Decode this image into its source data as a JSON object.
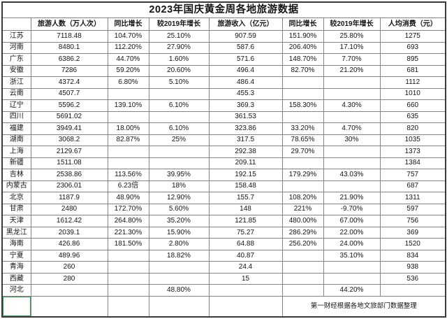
{
  "title": "2023年国庆黄金周各地旅游数据",
  "source_note": "第一财经根据各地文旅部门数据整理",
  "columns": [
    "",
    "旅游人数（万人次）",
    "同比增长",
    "较2019年增长",
    "旅游收入（亿元）",
    "同比增长",
    "较2019年增长",
    "人均消费（元）"
  ],
  "rows": [
    [
      "江苏",
      "7118.48",
      "104.70%",
      "25.10%",
      "907.59",
      "151.90%",
      "25.80%",
      "1275"
    ],
    [
      "河南",
      "8480.1",
      "112.20%",
      "27.90%",
      "587.6",
      "206.40%",
      "17.10%",
      "693"
    ],
    [
      "广东",
      "6386.2",
      "44.70%",
      "1.60%",
      "571.6",
      "148.70%",
      "7.70%",
      "895"
    ],
    [
      "安徽",
      "7286",
      "59.20%",
      "20.60%",
      "496.4",
      "82.70%",
      "21.20%",
      "681"
    ],
    [
      "浙江",
      "4372.4",
      "6.80%",
      "5.10%",
      "486.4",
      "",
      "",
      "1112"
    ],
    [
      "云南",
      "4507.7",
      "",
      "",
      "455.3",
      "",
      "",
      "1010"
    ],
    [
      "辽宁",
      "5596.2",
      "139.10%",
      "6.10%",
      "369.3",
      "158.30%",
      "4.30%",
      "660"
    ],
    [
      "四川",
      "5691.02",
      "",
      "",
      "361.53",
      "",
      "",
      "635"
    ],
    [
      "福建",
      "3949.41",
      "18.00%",
      "6.10%",
      "323.86",
      "33.20%",
      "4.70%",
      "820"
    ],
    [
      "湖南",
      "3068.2",
      "82.87%",
      "25%",
      "317.5",
      "78.65%",
      "30%",
      "1035"
    ],
    [
      "上海",
      "2129.67",
      "",
      "",
      "292.38",
      "29.70%",
      "",
      "1373"
    ],
    [
      "新疆",
      "1511.08",
      "",
      "",
      "209.11",
      "",
      "",
      "1384"
    ],
    [
      "吉林",
      "2538.86",
      "113.56%",
      "39.95%",
      "192.15",
      "179.29%",
      "43.03%",
      "757"
    ],
    [
      "内蒙古",
      "2306.01",
      "6.23倍",
      "18%",
      "158.48",
      "",
      "",
      "687"
    ],
    [
      "北京",
      "1187.9",
      "48.90%",
      "12.90%",
      "155.7",
      "108.20%",
      "21.90%",
      "1311"
    ],
    [
      "甘肃",
      "2480",
      "172.70%",
      "5.60%",
      "148",
      "221%",
      "-9.70%",
      "597"
    ],
    [
      "天津",
      "1612.42",
      "264.80%",
      "35.20%",
      "121.85",
      "480.00%",
      "67.00%",
      "756"
    ],
    [
      "黑龙江",
      "2039.1",
      "221.30%",
      "15.90%",
      "75.27",
      "286.29%",
      "22.00%",
      "369"
    ],
    [
      "海南",
      "426.86",
      "181.50%",
      "2.80%",
      "64.88",
      "256.20%",
      "24.00%",
      "1520"
    ],
    [
      "宁夏",
      "489.96",
      "",
      "18.82%",
      "40.87",
      "",
      "35.10%",
      "834"
    ],
    [
      "青海",
      "260",
      "",
      "",
      "24.4",
      "",
      "",
      "938"
    ],
    [
      "西藏",
      "280",
      "",
      "",
      "15",
      "",
      "",
      "536"
    ],
    [
      "河北",
      "",
      "",
      "48.80%",
      "",
      "",
      "44.20%",
      ""
    ]
  ],
  "colors": {
    "selection_green": "#2e9e4a",
    "grid_line": "#848484",
    "outer_border": "#3a3a3a",
    "text": "#141414"
  }
}
